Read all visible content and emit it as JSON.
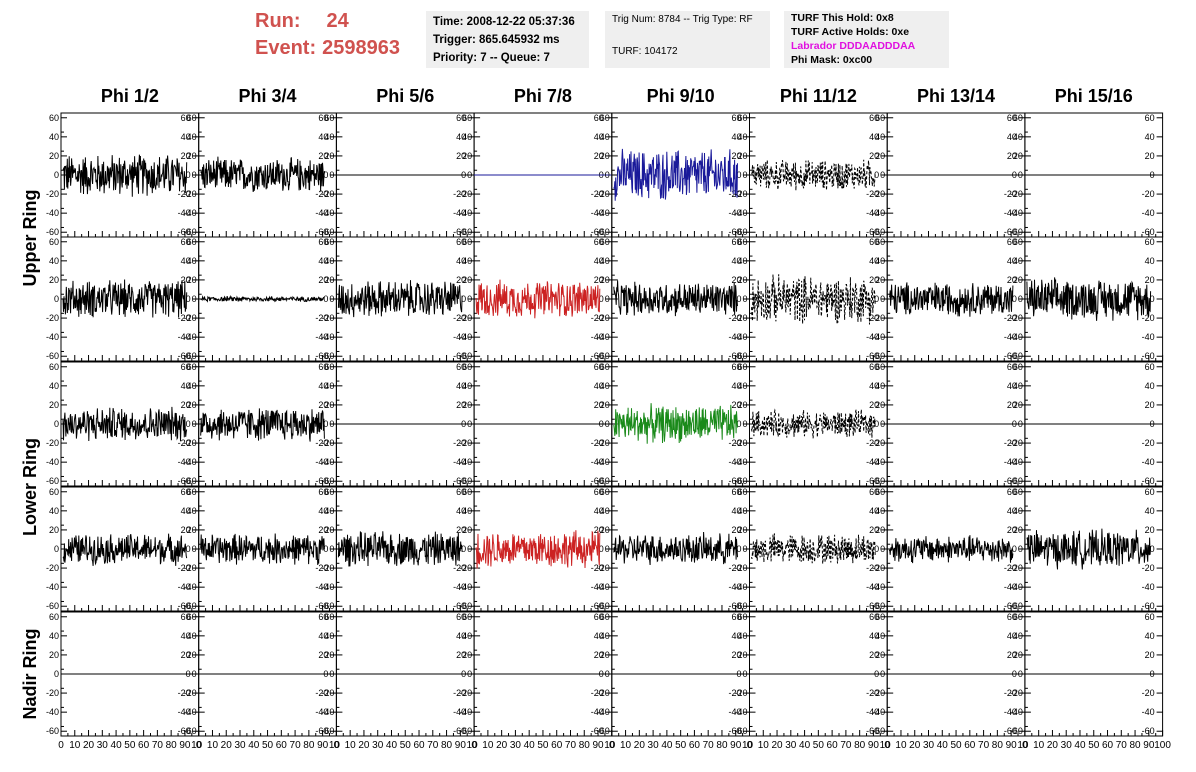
{
  "header": {
    "run_label": "Run:",
    "run_value": "24",
    "event_label": "Event:",
    "event_value": "2598963"
  },
  "info_time": {
    "time": "Time: 2008-12-22 05:37:36",
    "trigger": "Trigger: 865.645932 ms",
    "priority": "Priority: 7 -- Queue: 7"
  },
  "info_trig": {
    "trig": "Trig Num: 8784 -- Trig Type: RF",
    "turf": "TURF: 104172"
  },
  "info_turf": {
    "this_hold": "TURF This Hold: 0x8",
    "active_holds": "TURF Active Holds: 0xe",
    "labrador": "Labrador DDDAADDDAA",
    "phi_mask": "Phi Mask: 0xc00"
  },
  "columns": [
    "Phi 1/2",
    "Phi 3/4",
    "Phi 5/6",
    "Phi 7/8",
    "Phi 9/10",
    "Phi 11/12",
    "Phi 13/14",
    "Phi 15/16"
  ],
  "rows": [
    "Upper Ring",
    "Lower Ring",
    "Nadir Ring"
  ],
  "y_ticks": [
    "60",
    "40",
    "20",
    "0",
    "-20",
    "-40",
    "-60"
  ],
  "x_ticks": [
    "0",
    "10",
    "20",
    "30",
    "40",
    "50",
    "60",
    "70",
    "80",
    "90",
    "100"
  ],
  "x_tick_last": "10",
  "chart_data": {
    "type": "line",
    "ylim": [
      -65,
      65
    ],
    "xlim": [
      0,
      100
    ],
    "colors": {
      "black": "#000000",
      "blue": "#1a1a9a",
      "red": "#cc2222",
      "green": "#1a8a1a"
    },
    "panels": [
      [
        "noise-25",
        "noise-20",
        "flat",
        "flat-blue",
        "noise-30-blue",
        "dashed-18",
        "flat",
        "flat"
      ],
      [
        "noise-22",
        "noise-3",
        "noise-22",
        "noise-22-red",
        "noise-20",
        "dashed-28",
        "noise-20",
        "noise-24"
      ],
      [
        "noise-20",
        "noise-20",
        "flat",
        "flat",
        "noise-22-green",
        "dashed-16",
        "flat",
        "flat"
      ],
      [
        "noise-18",
        "noise-18",
        "noise-20",
        "noise-22-red",
        "noise-18",
        "dashed-18",
        "noise-16",
        "noise-22"
      ],
      [
        "flat",
        "flat",
        "flat",
        "flat",
        "flat",
        "flat",
        "flat",
        "flat"
      ]
    ]
  }
}
